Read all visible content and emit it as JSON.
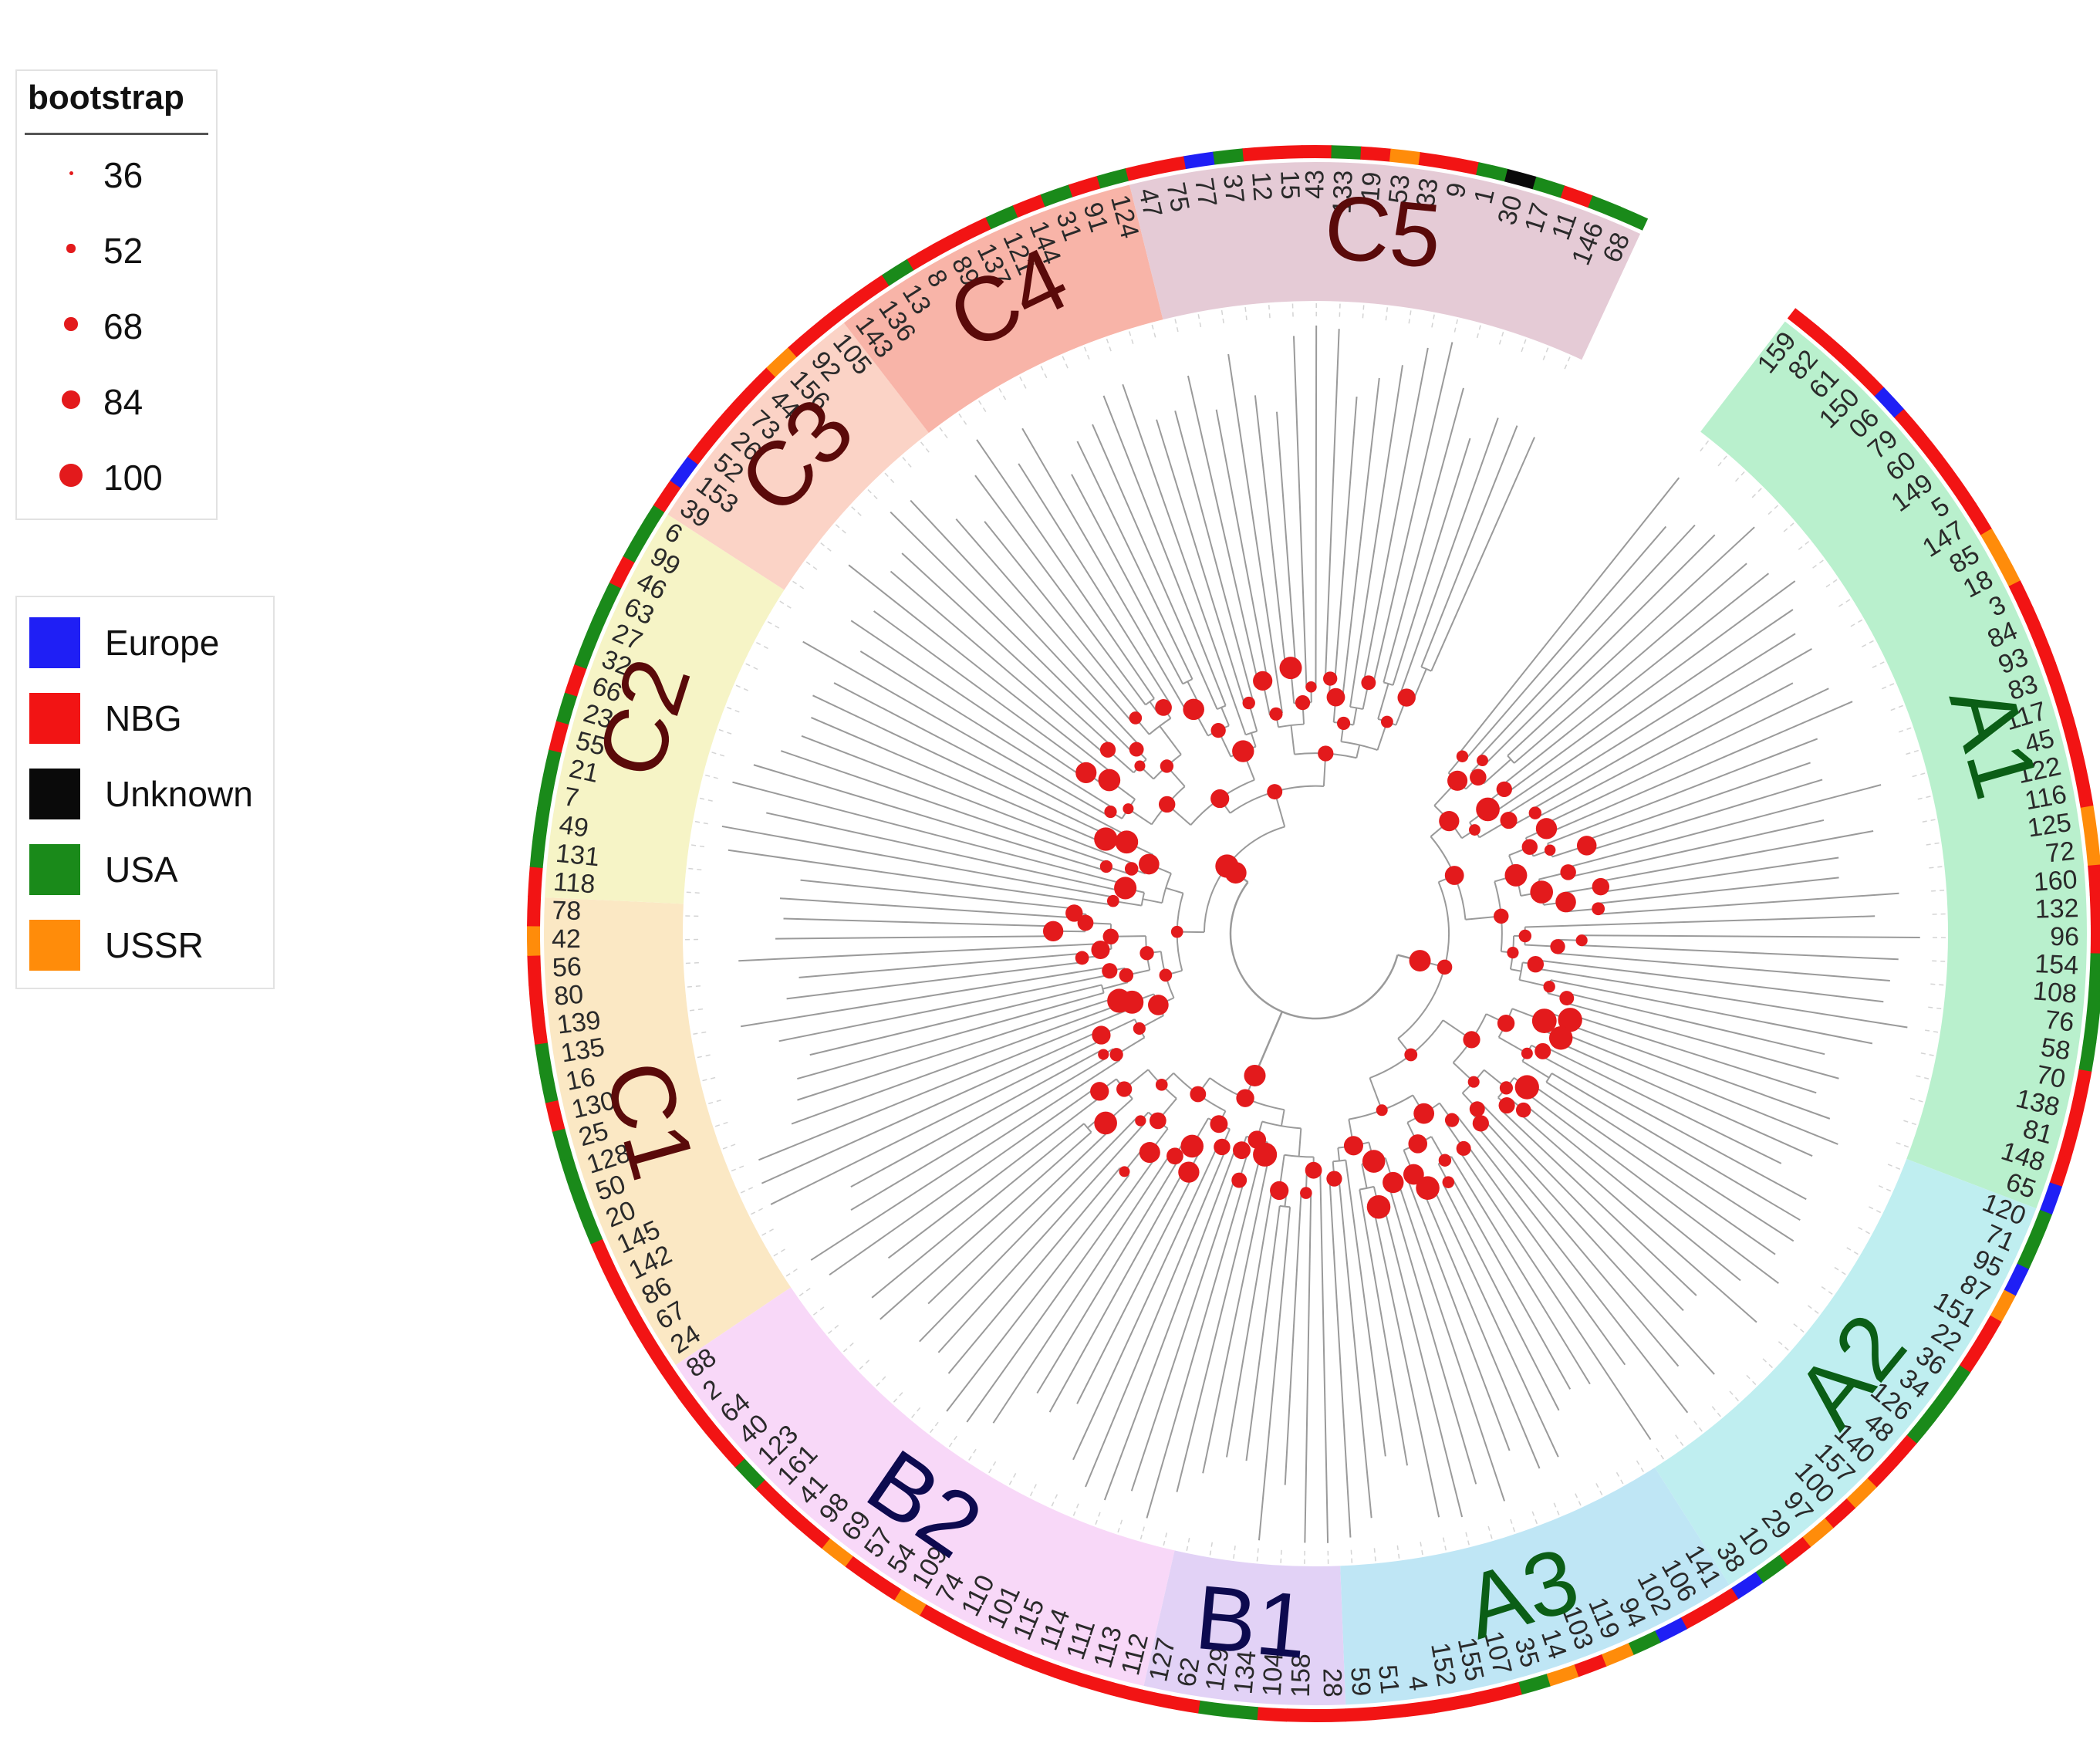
{
  "legend": {
    "bootstrap": {
      "title": "bootstrap",
      "items": [
        {
          "label": "36",
          "value": 36
        },
        {
          "label": "52",
          "value": 52
        },
        {
          "label": "68",
          "value": 68
        },
        {
          "label": "84",
          "value": 84
        },
        {
          "label": "100",
          "value": 100
        }
      ]
    },
    "origin": {
      "items": [
        {
          "label": "Europe",
          "color": "#1f1ff5"
        },
        {
          "label": "NBG",
          "color": "#f21414"
        },
        {
          "label": "Unknown",
          "color": "#0a0a0a"
        },
        {
          "label": "USA",
          "color": "#1a8a1a"
        },
        {
          "label": "USSR",
          "color": "#ff8c0a"
        }
      ]
    }
  },
  "colors": {
    "node": "#e31a1c",
    "branch": "#9a9a9a",
    "guide": "#d4d4d4"
  },
  "tree": {
    "clades": [
      {
        "name": "A1",
        "labelColor": "#0b5e16",
        "fill": "#b9f0cd",
        "leaves": [
          "159",
          "82",
          "61",
          "150",
          "06",
          "79",
          "60",
          "149",
          "5",
          "147",
          "85",
          "18",
          "3",
          "84",
          "93",
          "83",
          "117",
          "45",
          "122",
          "116",
          "125",
          "72",
          "160",
          "132",
          "96",
          "154",
          "108",
          "76",
          "58",
          "70",
          "138",
          "81",
          "148",
          "65"
        ],
        "origins": "NNNNENNNNNOONNNNNNNNOONNNUUUUNNNNE"
      },
      {
        "name": "A2",
        "labelColor": "#0b5e16",
        "fill": "#bfeef0",
        "leaves": [
          "120",
          "71",
          "95",
          "87",
          "151",
          "22",
          "36",
          "34",
          "126",
          "48",
          "140",
          "157",
          "100",
          "97",
          "29",
          "10",
          "38"
        ],
        "origins": "UUEONNUUUNNONONUE"
      },
      {
        "name": "A3",
        "labelColor": "#0b5e16",
        "fill": "#bfe6f5",
        "leaves": [
          "141",
          "106",
          "102",
          "94",
          "119",
          "103",
          "14",
          "35",
          "107",
          "155",
          "152",
          "4",
          "51",
          "59"
        ],
        "origins": "NNEUONOUNNNNNN"
      },
      {
        "name": "B1",
        "labelColor": "#0d0a4f",
        "fill": "#e2d2f6",
        "leaves": [
          "28",
          "158",
          "104",
          "134",
          "129",
          "62",
          "127"
        ],
        "origins": "NNNUUNN"
      },
      {
        "name": "B2",
        "labelColor": "#0d0a4f",
        "fill": "#f8d8f8",
        "leaves": [
          "112",
          "113",
          "111",
          "114",
          "115",
          "101",
          "110",
          "74",
          "109",
          "54",
          "57",
          "69",
          "98",
          "41",
          "161",
          "123",
          "40",
          "64",
          "2",
          "88"
        ],
        "origins": "NNNNNNNNONNONNNUNNNN"
      },
      {
        "name": "C1",
        "labelColor": "#5a0a0a",
        "fill": "#fbe8c4",
        "leaves": [
          "24",
          "67",
          "86",
          "142",
          "145",
          "20",
          "50",
          "128",
          "25",
          "130",
          "16",
          "135",
          "139",
          "80",
          "56",
          "42",
          "78"
        ],
        "origins": "NNNNNUUUUNUUNNNON"
      },
      {
        "name": "C2",
        "labelColor": "#5a0a0a",
        "fill": "#f6f4c6",
        "leaves": [
          "118",
          "131",
          "49",
          "7",
          "21",
          "55",
          "23",
          "66",
          "32",
          "27",
          "63",
          "46",
          "99",
          "6"
        ],
        "origins": "NUUUUNUNUUUNUU"
      },
      {
        "name": "C3",
        "labelColor": "#5a0a0a",
        "fill": "#fbd3c6",
        "leaves": [
          "39",
          "153",
          "52",
          "26",
          "73",
          "44",
          "156",
          "92",
          "105"
        ],
        "origins": "NENNNNONN"
      },
      {
        "name": "C4",
        "labelColor": "#5a0a0a",
        "fill": "#f8b4a8",
        "leaves": [
          "143",
          "136",
          "13",
          "8",
          "89",
          "137",
          "121",
          "144",
          "31",
          "91",
          "124"
        ],
        "origins": "NNUNNNUNUNU"
      },
      {
        "name": "C5",
        "labelColor": "#5a0a0a",
        "fill": "#e5cbd6",
        "leaves": [
          "47",
          "75",
          "77",
          "37",
          "12",
          "15",
          "43",
          "133",
          "19",
          "53",
          "33",
          "9",
          "1",
          "30",
          "17",
          "11",
          "146",
          "68"
        ],
        "origins": "NNEUNNNUNONNUKUNUU"
      }
    ]
  }
}
